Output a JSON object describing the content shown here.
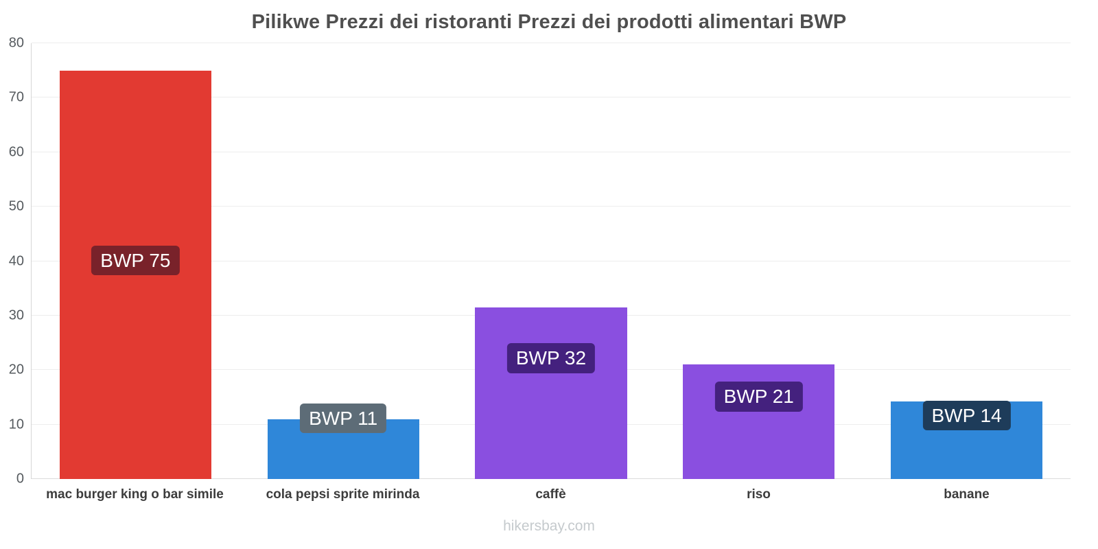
{
  "chart_data": {
    "type": "bar",
    "title": "Pilikwe Prezzi dei ristoranti Prezzi dei prodotti alimentari BWP",
    "categories": [
      "mac burger king o bar simile",
      "cola pepsi sprite mirinda",
      "caffè",
      "riso",
      "banane"
    ],
    "values": [
      75,
      11,
      31.5,
      21,
      14.3
    ],
    "labels": [
      "BWP 75",
      "BWP 11",
      "BWP 32",
      "BWP 21",
      "BWP 14"
    ],
    "bar_colors": [
      "#e23a32",
      "#2f87d9",
      "#8a4fe0",
      "#8a4fe0",
      "#2f87d9"
    ],
    "badge_colors": [
      "#79222a",
      "#5d6c77",
      "#44217e",
      "#44217e",
      "#1e3c5a"
    ],
    "label_y": [
      40,
      11,
      22,
      15,
      11.5
    ],
    "ylim": [
      0,
      80
    ],
    "yticks": [
      0,
      10,
      20,
      30,
      40,
      50,
      60,
      70,
      80
    ],
    "grid": true,
    "legend": false,
    "xlabel": "",
    "ylabel": ""
  },
  "footer": {
    "watermark": "hikersbay.com"
  }
}
